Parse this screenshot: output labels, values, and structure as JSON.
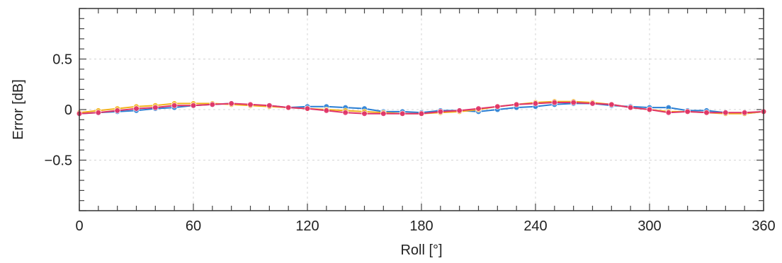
{
  "chart_data": {
    "type": "line",
    "title": "",
    "xlabel": "Roll [°]",
    "ylabel": "Error [dB]",
    "xlim": [
      0,
      360
    ],
    "ylim": [
      -1,
      1
    ],
    "x_ticks": [
      0,
      60,
      120,
      180,
      240,
      300,
      360
    ],
    "x_tick_labels": [
      "0",
      "60",
      "120",
      "180",
      "240",
      "300",
      "360"
    ],
    "y_ticks": [
      -0.5,
      0,
      0.5
    ],
    "y_tick_labels": [
      "−0.5",
      "0",
      "0.5"
    ],
    "grid": true,
    "legend": "none",
    "x": [
      0,
      10,
      20,
      30,
      40,
      50,
      60,
      70,
      80,
      90,
      100,
      110,
      120,
      130,
      140,
      150,
      160,
      170,
      180,
      190,
      200,
      210,
      220,
      230,
      240,
      250,
      260,
      270,
      280,
      290,
      300,
      310,
      320,
      330,
      340,
      350,
      360
    ],
    "series": [
      {
        "color": "#2a7fd4",
        "values": [
          -0.04,
          -0.03,
          -0.02,
          -0.01,
          0.01,
          0.02,
          0.04,
          0.05,
          0.06,
          0.04,
          0.04,
          0.02,
          0.03,
          0.03,
          0.02,
          0.01,
          -0.02,
          -0.02,
          -0.03,
          -0.01,
          -0.01,
          -0.02,
          0.0,
          0.02,
          0.03,
          0.05,
          0.06,
          0.06,
          0.04,
          0.03,
          0.02,
          0.02,
          -0.01,
          -0.01,
          -0.03,
          -0.04,
          -0.02
        ]
      },
      {
        "color": "#f2b21c",
        "values": [
          -0.03,
          -0.01,
          0.01,
          0.03,
          0.04,
          0.06,
          0.06,
          0.06,
          0.05,
          0.04,
          0.03,
          0.02,
          0.01,
          0.0,
          -0.01,
          -0.02,
          -0.03,
          -0.04,
          -0.04,
          -0.03,
          -0.02,
          0.0,
          0.03,
          0.05,
          0.07,
          0.08,
          0.08,
          0.07,
          0.05,
          0.02,
          0.0,
          -0.02,
          -0.02,
          -0.03,
          -0.04,
          -0.04,
          -0.02
        ]
      },
      {
        "color": "#e0336a",
        "values": [
          -0.04,
          -0.03,
          -0.01,
          0.01,
          0.02,
          0.04,
          0.04,
          0.05,
          0.06,
          0.05,
          0.04,
          0.02,
          0.01,
          -0.01,
          -0.03,
          -0.04,
          -0.04,
          -0.04,
          -0.04,
          -0.02,
          -0.01,
          0.01,
          0.03,
          0.05,
          0.06,
          0.07,
          0.07,
          0.06,
          0.05,
          0.02,
          0.0,
          -0.03,
          -0.02,
          -0.03,
          -0.03,
          -0.03,
          -0.02
        ]
      }
    ]
  }
}
